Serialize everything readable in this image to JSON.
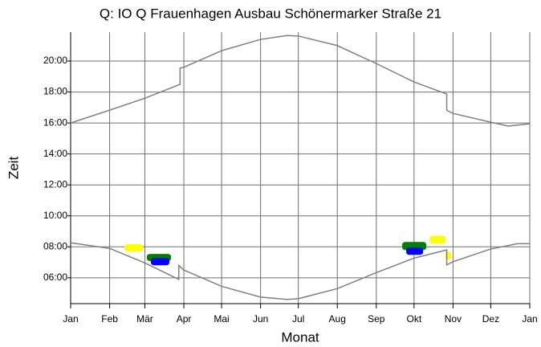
{
  "chart_data": {
    "type": "line",
    "title": "Q: IO Q Frauenhagen Ausbau Schönermarker Straße 21",
    "x_label": "Monat",
    "y_label": "Zeit",
    "grid": true,
    "xlim": [
      0,
      365
    ],
    "ylim": [
      4.33,
      21.87
    ],
    "xticks": [
      {
        "value": 0,
        "label": "Jan"
      },
      {
        "value": 31,
        "label": "Feb"
      },
      {
        "value": 59,
        "label": "Mär"
      },
      {
        "value": 90,
        "label": "Apr"
      },
      {
        "value": 120,
        "label": "Mai"
      },
      {
        "value": 151,
        "label": "Jun"
      },
      {
        "value": 181,
        "label": "Jul"
      },
      {
        "value": 212,
        "label": "Aug"
      },
      {
        "value": 243,
        "label": "Sep"
      },
      {
        "value": 273,
        "label": "Okt"
      },
      {
        "value": 304,
        "label": "Nov"
      },
      {
        "value": 334,
        "label": "Dez"
      },
      {
        "value": 365,
        "label": "Jan"
      }
    ],
    "yticks": [
      {
        "value": 6,
        "label": "06:00"
      },
      {
        "value": 8,
        "label": "08:00"
      },
      {
        "value": 10,
        "label": "10:00"
      },
      {
        "value": 12,
        "label": "12:00"
      },
      {
        "value": 14,
        "label": "14:00"
      },
      {
        "value": 16,
        "label": "16:00"
      },
      {
        "value": 18,
        "label": "18:00"
      },
      {
        "value": 20,
        "label": "20:00"
      }
    ],
    "series": [
      {
        "color": "#808080",
        "x": [
          0,
          31,
          59,
          87,
          87,
          90,
          120,
          151,
          172,
          181,
          212,
          243,
          273,
          299,
          299,
          304,
          334,
          348,
          365
        ],
        "values": [
          16.0,
          16.83,
          17.6,
          18.5,
          19.55,
          19.6,
          20.67,
          21.4,
          21.65,
          21.62,
          21.0,
          19.84,
          18.65,
          17.87,
          16.82,
          16.62,
          16.05,
          15.8,
          15.95
        ]
      },
      {
        "color": "#808080",
        "x": [
          0,
          31,
          59,
          86,
          86,
          90,
          120,
          151,
          172,
          181,
          212,
          243,
          273,
          299,
          299,
          304,
          334,
          355,
          365
        ],
        "values": [
          8.26,
          7.9,
          6.96,
          5.9,
          6.8,
          6.5,
          5.45,
          4.75,
          4.6,
          4.65,
          5.3,
          6.33,
          7.27,
          7.8,
          6.83,
          7.04,
          7.86,
          8.2,
          8.2
        ]
      }
    ],
    "areas": [
      {
        "color": "#ffff00",
        "x": [
          42.8,
          57.4
        ],
        "y": [
          7.7,
          8.17
        ]
      },
      {
        "color": "#008000",
        "x": [
          60.6,
          79.8
        ],
        "y": [
          7.08,
          7.54
        ]
      },
      {
        "color": "#0000ff",
        "x": [
          63.8,
          78.5
        ],
        "y": [
          6.81,
          7.28
        ]
      },
      {
        "color": "#ffff00",
        "x": [
          285.3,
          298
        ],
        "y": [
          8.2,
          8.72
        ]
      },
      {
        "color": "#ffff00",
        "x": [
          298,
          302.5
        ],
        "y": [
          7.17,
          7.7
        ]
      },
      {
        "color": "#008000",
        "x": [
          263.6,
          282.7
        ],
        "y": [
          7.79,
          8.31
        ]
      },
      {
        "color": "#0000ff",
        "x": [
          266.8,
          280.2
        ],
        "y": [
          7.48,
          7.95
        ]
      }
    ]
  }
}
